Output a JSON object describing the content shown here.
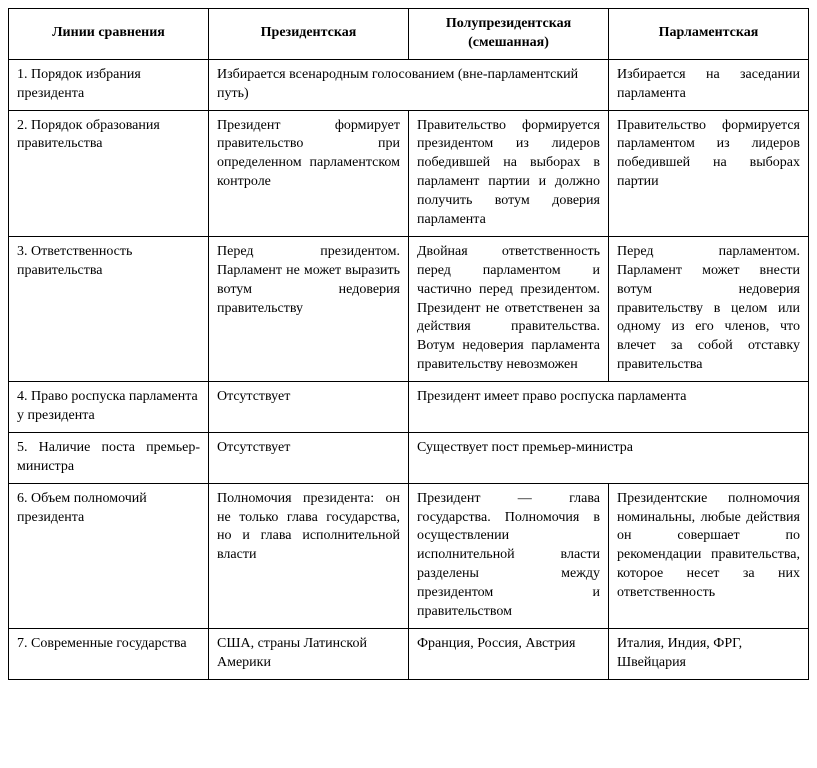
{
  "table": {
    "headers": {
      "criteria": "Линии сравнения",
      "presidential": "Президентская",
      "semi": "Полупрезидентская (смешанная)",
      "parliamentary": "Парламентская"
    },
    "rows": {
      "r1": {
        "label": "1. Порядок избрания президента",
        "merged_pres_semi": "Избирается всенародным голосованием (вне-парламентский путь)",
        "parl": "Избирается на заседании парламента"
      },
      "r2": {
        "label": "2. Порядок образования правительства",
        "pres": "Президент формирует правительство при определенном парламентском контроле",
        "semi": "Правительство формируется президентом из лидеров победившей на выборах в парламент партии и должно получить вотум доверия парламента",
        "parl": "Правительство формируется парламентом из лидеров победившей на выборах партии"
      },
      "r3": {
        "label": "3. Ответственность правительства",
        "pres": "Перед президентом. Парламент не может выразить вотум недоверия правительству",
        "semi": "Двойная ответственность перед парламентом и частично перед президентом. Президент не ответственен за действия правительства. Вотум недоверия парламента правительству невозможен",
        "parl": "Перед парламентом. Парламент может внести вотум недоверия правительству в целом или одному из его членов, что влечет за собой отставку правительства"
      },
      "r4": {
        "label": "4. Право роспуска парламента у президента",
        "pres": "Отсутствует",
        "merged_semi_parl": "Президент имеет право роспуска парламента"
      },
      "r5": {
        "label": "5. Наличие поста премьер-министра",
        "pres": "Отсутствует",
        "merged_semi_parl": "Существует пост премьер-министра"
      },
      "r6": {
        "label": "6. Объем полномочий президента",
        "pres": "Полномочия президента: он не только глава государства, но и глава исполнительной власти",
        "semi": "Президент — глава государства. Полномочия в осуществлении исполнительной власти разделены между президентом и правительством",
        "parl": "Президентские полномочия номинальны, любые действия он совершает по рекомендации правительства, которое несет за них ответственность"
      },
      "r7": {
        "label": "7. Современные государства",
        "pres": "США, страны Латинской Америки",
        "semi": "Франция, Россия, Австрия",
        "parl": "Италия, Индия, ФРГ, Швейцария"
      }
    }
  }
}
